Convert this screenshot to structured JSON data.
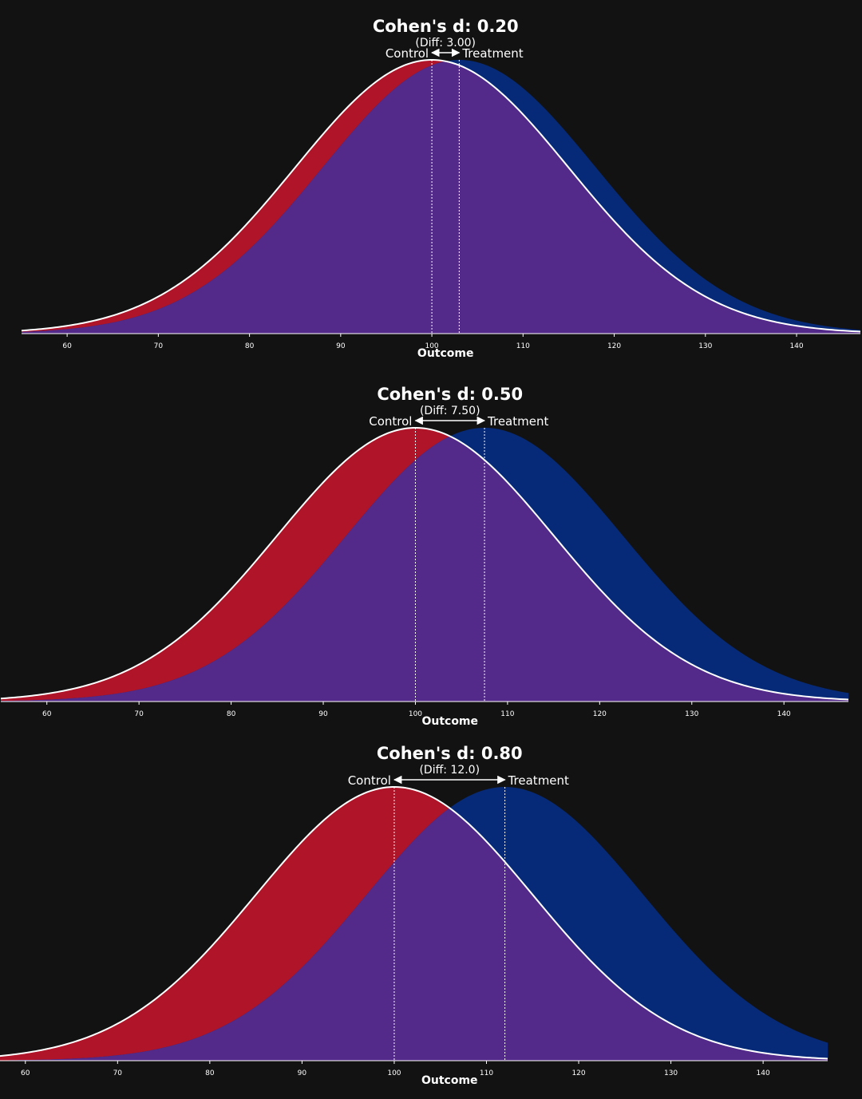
{
  "colors": {
    "background": "#121212",
    "control": "#b01428",
    "treatment": "#062a78",
    "overlap": "#532a8a",
    "line": "#ffffff",
    "text": "#ffffff"
  },
  "chart_data": [
    {
      "type": "area",
      "title": "Cohen's d: 0.20",
      "subtitle": "(Diff: 3.00)",
      "xlabel": "Outcome",
      "ylabel": "",
      "series": [
        {
          "name": "Control",
          "mean": 100,
          "sd": 15
        },
        {
          "name": "Treatment",
          "mean": 103,
          "sd": 15
        }
      ],
      "x_ticks": [
        60,
        70,
        80,
        90,
        100,
        110,
        120,
        130,
        140
      ],
      "xlim": [
        55,
        147
      ],
      "grid": false
    },
    {
      "type": "area",
      "title": "Cohen's d: 0.50",
      "subtitle": "(Diff: 7.50)",
      "xlabel": "Outcome",
      "ylabel": "",
      "series": [
        {
          "name": "Control",
          "mean": 100,
          "sd": 15
        },
        {
          "name": "Treatment",
          "mean": 107.5,
          "sd": 15
        }
      ],
      "x_ticks": [
        60,
        70,
        80,
        90,
        100,
        110,
        120,
        130,
        140
      ],
      "xlim": [
        55,
        147
      ],
      "grid": false
    },
    {
      "type": "area",
      "title": "Cohen's d: 0.80",
      "subtitle": "(Diff: 12.0)",
      "xlabel": "Outcome",
      "ylabel": "",
      "series": [
        {
          "name": "Control",
          "mean": 100,
          "sd": 15
        },
        {
          "name": "Treatment",
          "mean": 112,
          "sd": 15
        }
      ],
      "x_ticks": [
        60,
        70,
        80,
        90,
        100,
        110,
        120,
        130,
        140
      ],
      "xlim": [
        55,
        147
      ],
      "grid": false
    }
  ]
}
